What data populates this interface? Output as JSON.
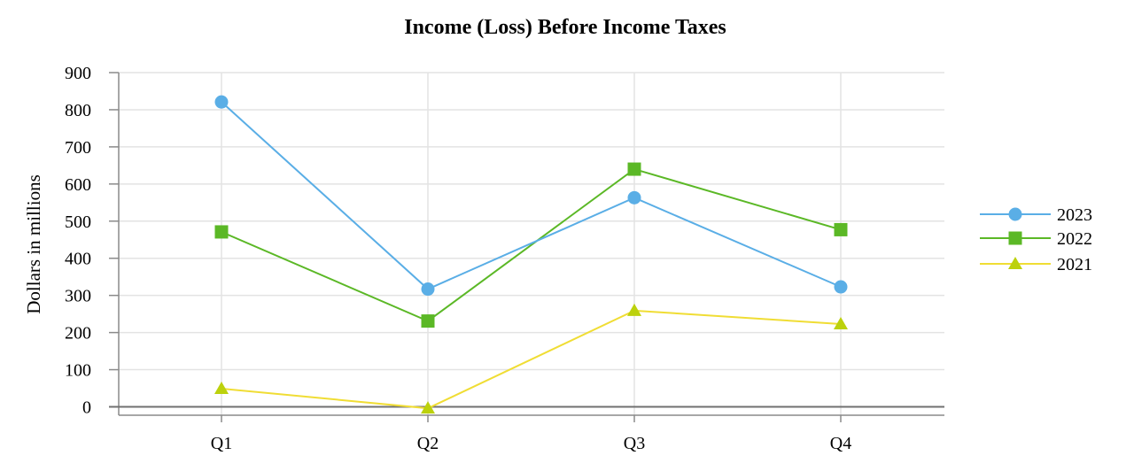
{
  "chart_data": {
    "type": "line",
    "title": "Income (Loss) Before Income Taxes",
    "xlabel": "",
    "ylabel": "Dollars in millions",
    "categories": [
      "Q1",
      "Q2",
      "Q3",
      "Q4"
    ],
    "ylim": [
      0,
      900
    ],
    "yticks": [
      0,
      100,
      200,
      300,
      400,
      500,
      600,
      700,
      800,
      900
    ],
    "grid": true,
    "legend_position": "right",
    "series": [
      {
        "name": "2023",
        "values": [
          821,
          317,
          563,
          323
        ],
        "color": "#5aaee6",
        "marker": "circle"
      },
      {
        "name": "2022",
        "values": [
          471,
          231,
          640,
          477
        ],
        "color": "#5bb826",
        "marker": "square"
      },
      {
        "name": "2021",
        "values": [
          49,
          -4,
          259,
          223
        ],
        "color": "#f0dd34",
        "marker": "triangle",
        "marker_color": "#bcd10c"
      }
    ]
  }
}
